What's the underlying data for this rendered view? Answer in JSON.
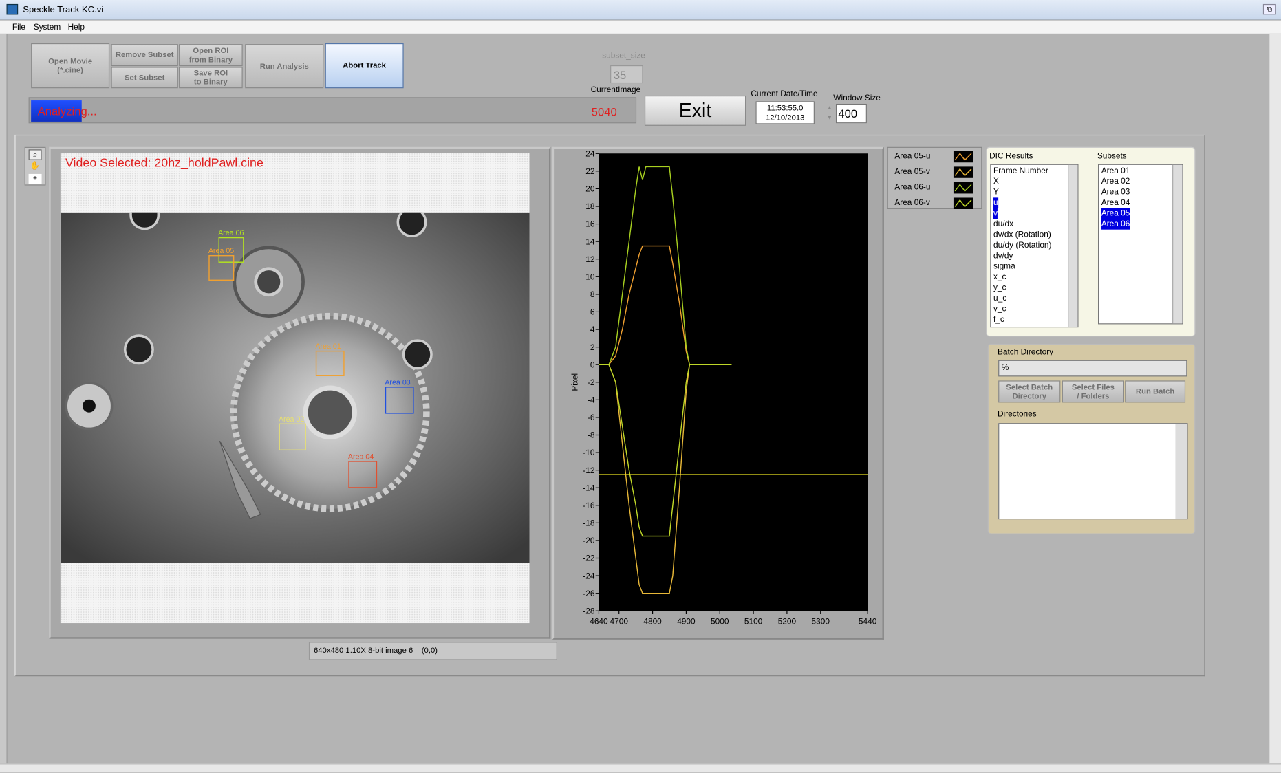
{
  "window": {
    "title": "Speckle Track KC.vi"
  },
  "menu": [
    "File",
    "System",
    "Help"
  ],
  "toolbar": {
    "open_movie": [
      "Open Movie",
      "(*.cine)"
    ],
    "remove_subset": "Remove Subset",
    "set_subset": "Set Subset",
    "open_roi": [
      "Open ROI",
      "from Binary"
    ],
    "save_roi": [
      "Save ROI",
      "to Binary"
    ],
    "run_analysis": "Run Analysis",
    "abort_track": "Abort Track"
  },
  "subset_size": {
    "label": "subset_size",
    "value": "35"
  },
  "current_image": {
    "label": "CurrentImage",
    "value": "5040"
  },
  "status": "Analyzing...",
  "exit": "Exit",
  "datetime": {
    "label": "Current Date/Time",
    "time": "11:53:55.0",
    "date": "12/10/2013"
  },
  "window_size": {
    "label": "Window Size",
    "value": "400"
  },
  "video": {
    "title": "Video Selected: 20hz_holdPawl.cine",
    "rois": [
      {
        "label": "Area 06",
        "color": "#b5e61d"
      },
      {
        "label": "Area 05",
        "color": "#f0a030"
      },
      {
        "label": "Area 01",
        "color": "#f0a030"
      },
      {
        "label": "Area 03",
        "color": "#2050e0"
      },
      {
        "label": "Area 02",
        "color": "#e8e070"
      },
      {
        "label": "Area 04",
        "color": "#e05030"
      }
    ],
    "info": "640x480 1.10X 8-bit image 6    (0,0)"
  },
  "chart_data": {
    "type": "line",
    "ylabel": "Pixel",
    "xlim": [
      4640,
      5440
    ],
    "ylim": [
      -28,
      24
    ],
    "xticks": [
      4640,
      4700,
      4800,
      4900,
      5000,
      5100,
      5200,
      5300,
      5440
    ],
    "yticks": [
      -28,
      -26,
      -24,
      -22,
      -20,
      -18,
      -16,
      -14,
      -12,
      -10,
      -8,
      -6,
      -4,
      -2,
      0,
      2,
      4,
      6,
      8,
      10,
      12,
      14,
      16,
      18,
      20,
      22,
      24
    ],
    "x": [
      4640,
      4670,
      4690,
      4710,
      4730,
      4750,
      4760,
      4770,
      4780,
      4800,
      4840,
      4850,
      4860,
      4880,
      4900,
      4910,
      4935,
      5000,
      5035
    ],
    "series": [
      {
        "name": "Area 05-u",
        "color": "#f0a030",
        "values": [
          0,
          0,
          1,
          4,
          8,
          11,
          12.5,
          13.5,
          13.5,
          13.5,
          13.5,
          13.5,
          11.5,
          7,
          1.5,
          0,
          0,
          0,
          0
        ]
      },
      {
        "name": "Area 05-v",
        "color": "#e8b838",
        "values": [
          0,
          0,
          -2,
          -9,
          -16,
          -22,
          -25,
          -26,
          -26,
          -26,
          -26,
          -26,
          -24,
          -14,
          -3,
          0,
          0,
          0,
          0
        ]
      },
      {
        "name": "Area 06-u",
        "color": "#a8d020",
        "values": [
          0,
          0,
          2,
          8,
          14,
          20,
          22.5,
          21,
          22.5,
          22.5,
          22.5,
          22.5,
          19,
          11,
          2,
          0,
          0,
          0,
          0
        ]
      },
      {
        "name": "Area 06-v",
        "color": "#c0d828",
        "values": [
          0,
          0,
          -2,
          -7,
          -12,
          -16,
          -18.5,
          -19.5,
          -19.5,
          -19.5,
          -19.5,
          -19.5,
          -16,
          -9,
          -2,
          0,
          0,
          0,
          0
        ]
      }
    ],
    "cursor_y": -12.5,
    "cursor_color": "#e8e020",
    "background": "#000000"
  },
  "dic_results": {
    "label": "DIC Results",
    "items": [
      "Frame Number",
      "X",
      "Y",
      "u",
      "v",
      "du/dx",
      "dv/dx (Rotation)",
      "du/dy (Rotation)",
      "dv/dy",
      "sigma",
      "x_c",
      "y_c",
      "u_c",
      "v_c",
      "f_c"
    ],
    "selected": [
      3,
      4
    ]
  },
  "subsets": {
    "label": "Subsets",
    "items": [
      "Area 01",
      "Area 02",
      "Area 03",
      "Area 04",
      "Area 05",
      "Area 06"
    ],
    "selected": [
      4,
      5
    ]
  },
  "batch": {
    "label": "Batch Directory",
    "path": "%",
    "buttons": [
      [
        "Select Batch",
        "Directory"
      ],
      [
        "Select Files",
        "/ Folders"
      ],
      [
        "Run Batch"
      ]
    ],
    "directories_label": "Directories"
  }
}
